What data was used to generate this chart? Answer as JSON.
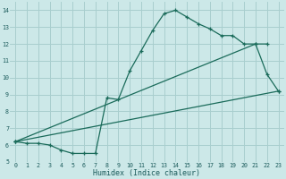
{
  "xlabel": "Humidex (Indice chaleur)",
  "bg_color": "#cce8e8",
  "grid_color": "#a8cece",
  "line_color": "#1a6b5a",
  "line1_x": [
    0,
    1,
    2,
    3,
    4,
    5,
    6,
    7,
    8,
    9,
    10,
    11,
    12,
    13,
    14,
    15,
    16,
    17,
    18,
    19,
    20,
    21,
    22,
    23
  ],
  "line1_y": [
    6.2,
    6.1,
    6.1,
    6.0,
    5.7,
    5.5,
    5.5,
    5.5,
    8.8,
    8.7,
    10.4,
    11.6,
    12.8,
    13.8,
    14.0,
    13.6,
    13.2,
    12.9,
    12.5,
    12.5,
    12.0,
    12.0,
    10.2,
    9.2
  ],
  "line2_x": [
    0,
    21,
    22
  ],
  "line2_y": [
    6.2,
    12.0,
    12.0
  ],
  "line3_x": [
    0,
    23
  ],
  "line3_y": [
    6.2,
    9.2
  ],
  "xlim": [
    -0.5,
    23.5
  ],
  "ylim": [
    5.0,
    14.5
  ],
  "xticks": [
    0,
    1,
    2,
    3,
    4,
    5,
    6,
    7,
    8,
    9,
    10,
    11,
    12,
    13,
    14,
    15,
    16,
    17,
    18,
    19,
    20,
    21,
    22,
    23
  ],
  "yticks": [
    5,
    6,
    7,
    8,
    9,
    10,
    11,
    12,
    13,
    14
  ]
}
